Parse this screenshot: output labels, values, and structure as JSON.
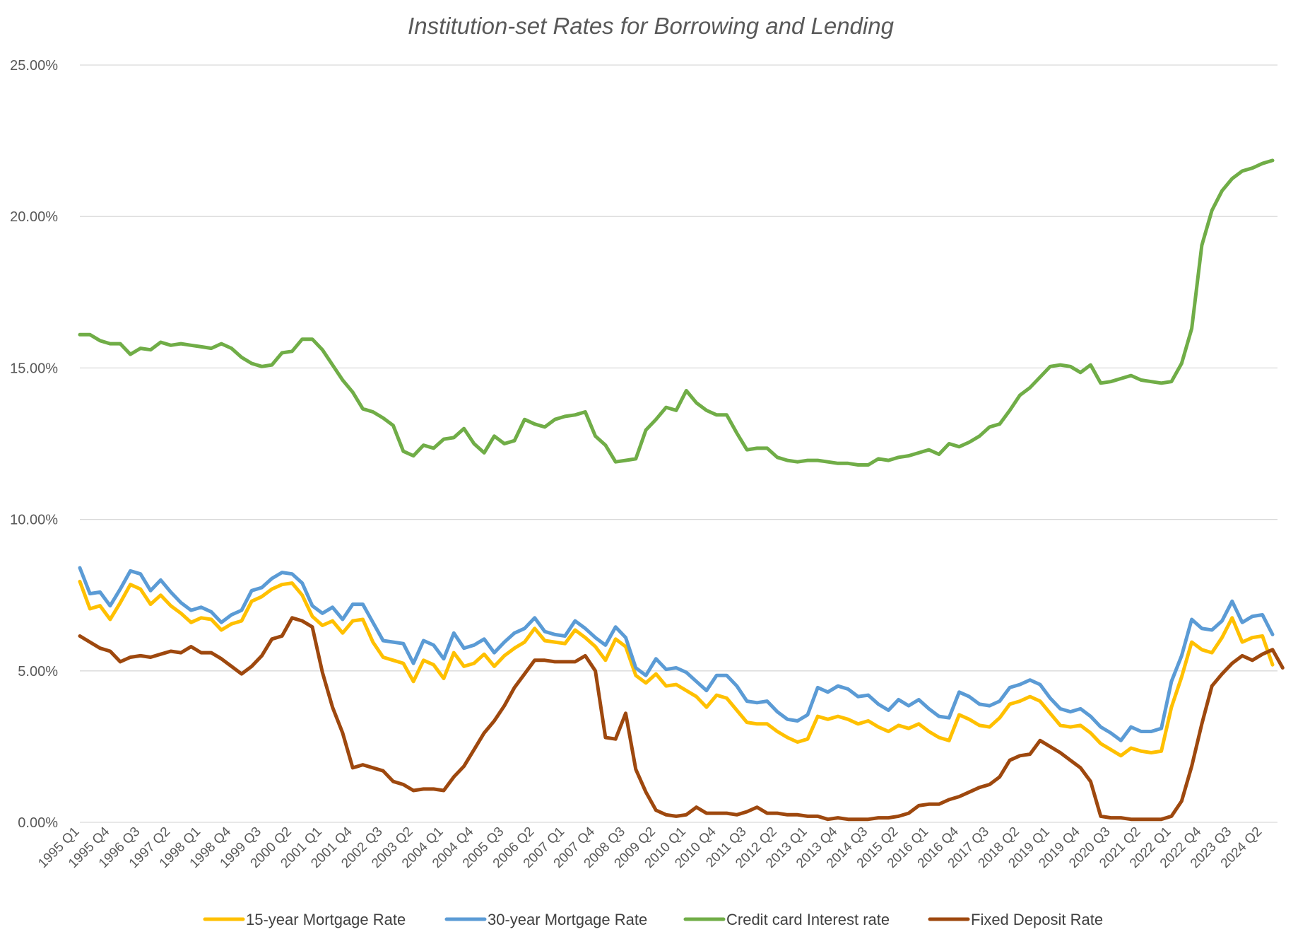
{
  "chart_data": {
    "type": "line",
    "title": "Institution-set Rates for Borrowing and Lending",
    "xlabel": "",
    "ylabel": "",
    "ylim": [
      0,
      25
    ],
    "y_ticks": [
      "0.00%",
      "5.00%",
      "10.00%",
      "15.00%",
      "20.00%",
      "25.00%"
    ],
    "grid": true,
    "legend_position": "bottom",
    "x_tick_labels": [
      "1995 Q1",
      "1995 Q4",
      "1996 Q3",
      "1997 Q2",
      "1998 Q1",
      "1998 Q4",
      "1999 Q3",
      "2000 Q2",
      "2001 Q1",
      "2001 Q4",
      "2002 Q3",
      "2003 Q2",
      "2004 Q1",
      "2004 Q4",
      "2005 Q3",
      "2006 Q2",
      "2007 Q1",
      "2007 Q4",
      "2008 Q3",
      "2009 Q2",
      "2010 Q1",
      "2010 Q4",
      "2011 Q3",
      "2012 Q2",
      "2013 Q1",
      "2013 Q4",
      "2014 Q3",
      "2015 Q2",
      "2016 Q1",
      "2016 Q4",
      "2017 Q3",
      "2018 Q2",
      "2019 Q1",
      "2019 Q4",
      "2020 Q3",
      "2021 Q2",
      "2022 Q1",
      "2022 Q4",
      "2023 Q3",
      "2024 Q2"
    ],
    "x_first": "1995 Q1",
    "x_last": "2024 Q3",
    "series": [
      {
        "name": "15-year Mortgage Rate",
        "color": "#FFC000",
        "values": [
          7.95,
          7.05,
          7.15,
          6.7,
          7.25,
          7.85,
          7.7,
          7.2,
          7.5,
          7.15,
          6.9,
          6.6,
          6.75,
          6.7,
          6.35,
          6.55,
          6.65,
          7.3,
          7.45,
          7.7,
          7.85,
          7.9,
          7.5,
          6.8,
          6.5,
          6.65,
          6.25,
          6.65,
          6.7,
          5.95,
          5.45,
          5.35,
          5.25,
          4.65,
          5.35,
          5.2,
          4.75,
          5.6,
          5.15,
          5.25,
          5.55,
          5.15,
          5.5,
          5.75,
          5.95,
          6.4,
          6.0,
          5.95,
          5.9,
          6.35,
          6.1,
          5.8,
          5.35,
          6.05,
          5.8,
          4.85,
          4.6,
          4.9,
          4.5,
          4.55,
          4.35,
          4.15,
          3.8,
          4.2,
          4.1,
          3.7,
          3.3,
          3.25,
          3.25,
          3.0,
          2.8,
          2.65,
          2.75,
          3.5,
          3.4,
          3.5,
          3.4,
          3.25,
          3.35,
          3.15,
          3.0,
          3.2,
          3.1,
          3.25,
          3.0,
          2.8,
          2.7,
          3.55,
          3.4,
          3.2,
          3.15,
          3.45,
          3.9,
          4.0,
          4.15,
          4.0,
          3.6,
          3.2,
          3.15,
          3.2,
          2.95,
          2.6,
          2.4,
          2.2,
          2.45,
          2.35,
          2.3,
          2.35,
          3.8,
          4.8,
          5.95,
          5.7,
          5.6,
          6.1,
          6.75,
          5.95,
          6.1,
          6.15,
          5.2
        ]
      },
      {
        "name": "30-year Mortgage Rate",
        "color": "#5B9BD5",
        "values": [
          8.4,
          7.55,
          7.6,
          7.15,
          7.7,
          8.3,
          8.2,
          7.65,
          8.0,
          7.6,
          7.25,
          7.0,
          7.1,
          6.95,
          6.6,
          6.85,
          7.0,
          7.65,
          7.75,
          8.05,
          8.25,
          8.2,
          7.9,
          7.15,
          6.9,
          7.1,
          6.7,
          7.2,
          7.2,
          6.6,
          6.0,
          5.95,
          5.9,
          5.25,
          6.0,
          5.85,
          5.4,
          6.25,
          5.75,
          5.85,
          6.05,
          5.6,
          5.95,
          6.25,
          6.4,
          6.75,
          6.3,
          6.2,
          6.15,
          6.65,
          6.4,
          6.1,
          5.85,
          6.45,
          6.1,
          5.1,
          4.85,
          5.4,
          5.05,
          5.1,
          4.95,
          4.65,
          4.35,
          4.85,
          4.85,
          4.5,
          4.0,
          3.95,
          4.0,
          3.65,
          3.4,
          3.35,
          3.55,
          4.45,
          4.3,
          4.5,
          4.4,
          4.15,
          4.2,
          3.9,
          3.7,
          4.05,
          3.85,
          4.05,
          3.75,
          3.5,
          3.45,
          4.3,
          4.15,
          3.9,
          3.85,
          4.0,
          4.45,
          4.55,
          4.7,
          4.55,
          4.1,
          3.75,
          3.65,
          3.75,
          3.5,
          3.15,
          2.95,
          2.7,
          3.15,
          3.0,
          3.0,
          3.1,
          4.65,
          5.5,
          6.7,
          6.4,
          6.35,
          6.65,
          7.3,
          6.6,
          6.8,
          6.85,
          6.2
        ]
      },
      {
        "name": "Credit card Interest rate",
        "color": "#70AD47",
        "values": [
          16.1,
          16.1,
          15.9,
          15.8,
          15.8,
          15.45,
          15.65,
          15.6,
          15.85,
          15.75,
          15.8,
          15.75,
          15.7,
          15.65,
          15.8,
          15.65,
          15.35,
          15.15,
          15.05,
          15.1,
          15.5,
          15.55,
          15.95,
          15.95,
          15.6,
          15.1,
          14.6,
          14.2,
          13.65,
          13.55,
          13.35,
          13.1,
          12.25,
          12.1,
          12.45,
          12.35,
          12.65,
          12.7,
          13.0,
          12.5,
          12.2,
          12.75,
          12.5,
          12.6,
          13.3,
          13.15,
          13.05,
          13.3,
          13.4,
          13.45,
          13.55,
          12.75,
          12.45,
          11.9,
          11.95,
          12.0,
          12.95,
          13.3,
          13.7,
          13.6,
          14.25,
          13.85,
          13.6,
          13.45,
          13.45,
          12.85,
          12.3,
          12.35,
          12.35,
          12.05,
          11.95,
          11.9,
          11.95,
          11.95,
          11.9,
          11.85,
          11.85,
          11.8,
          11.8,
          12.0,
          11.95,
          12.05,
          12.1,
          12.2,
          12.3,
          12.15,
          12.5,
          12.4,
          12.55,
          12.75,
          13.05,
          13.15,
          13.6,
          14.1,
          14.35,
          14.7,
          15.05,
          15.1,
          15.05,
          14.85,
          15.1,
          14.5,
          14.55,
          14.65,
          14.75,
          14.6,
          14.55,
          14.5,
          14.55,
          15.15,
          16.3,
          19.05,
          20.2,
          20.85,
          21.25,
          21.5,
          21.6,
          21.75,
          21.85
        ]
      },
      {
        "name": "Fixed Deposit Rate",
        "color": "#9E480E",
        "values": [
          6.15,
          5.95,
          5.75,
          5.65,
          5.3,
          5.45,
          5.5,
          5.45,
          5.55,
          5.65,
          5.6,
          5.8,
          5.6,
          5.6,
          5.4,
          5.15,
          4.9,
          5.15,
          5.5,
          6.05,
          6.15,
          6.75,
          6.65,
          6.45,
          4.95,
          3.8,
          2.95,
          1.8,
          1.9,
          1.8,
          1.7,
          1.35,
          1.25,
          1.05,
          1.1,
          1.1,
          1.05,
          1.5,
          1.85,
          2.4,
          2.95,
          3.35,
          3.85,
          4.45,
          4.9,
          5.35,
          5.35,
          5.3,
          5.3,
          5.3,
          5.5,
          5.0,
          2.8,
          2.75,
          3.6,
          1.75,
          1.0,
          0.4,
          0.25,
          0.2,
          0.25,
          0.5,
          0.3,
          0.3,
          0.3,
          0.25,
          0.35,
          0.5,
          0.3,
          0.3,
          0.25,
          0.25,
          0.2,
          0.2,
          0.1,
          0.15,
          0.1,
          0.1,
          0.1,
          0.15,
          0.15,
          0.2,
          0.3,
          0.55,
          0.6,
          0.6,
          0.75,
          0.85,
          1.0,
          1.15,
          1.25,
          1.5,
          2.05,
          2.2,
          2.25,
          2.7,
          2.5,
          2.3,
          2.05,
          1.8,
          1.35,
          0.2,
          0.15,
          0.15,
          0.1,
          0.1,
          0.1,
          0.1,
          0.2,
          0.7,
          1.85,
          3.25,
          4.5,
          4.9,
          5.25,
          5.5,
          5.35,
          5.55,
          5.7,
          5.1
        ]
      }
    ]
  }
}
